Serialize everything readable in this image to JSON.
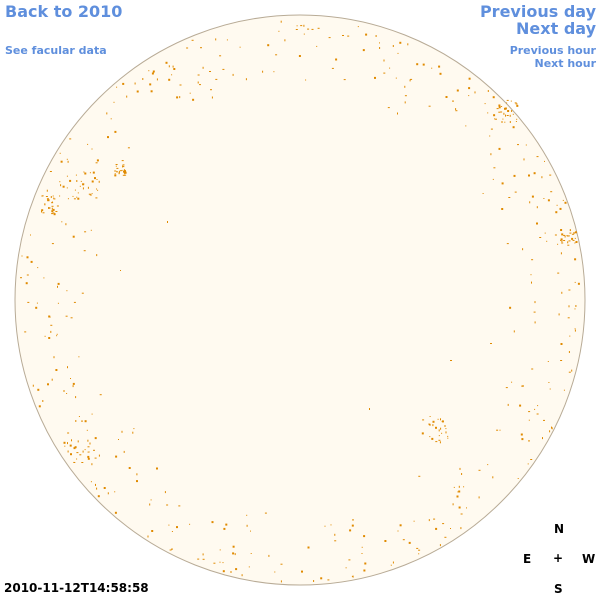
{
  "nav": {
    "back_label": "Back to 2010",
    "facular_label": "See facular data",
    "prev_day_label": "Previous day",
    "next_day_label": "Next day",
    "prev_hour_label": "Previous hour",
    "next_hour_label": "Next hour"
  },
  "timestamp": "2010-11-12T14:58:58",
  "compass": {
    "north": "N",
    "east": "E",
    "center": "+",
    "west": "W",
    "south": "S"
  },
  "colors": {
    "link": "#5f8fdd",
    "disk_fill": "#fffaf0",
    "disk_edge": "#b8ab96",
    "facula_marks": "#e08a00",
    "text": "#000000"
  }
}
